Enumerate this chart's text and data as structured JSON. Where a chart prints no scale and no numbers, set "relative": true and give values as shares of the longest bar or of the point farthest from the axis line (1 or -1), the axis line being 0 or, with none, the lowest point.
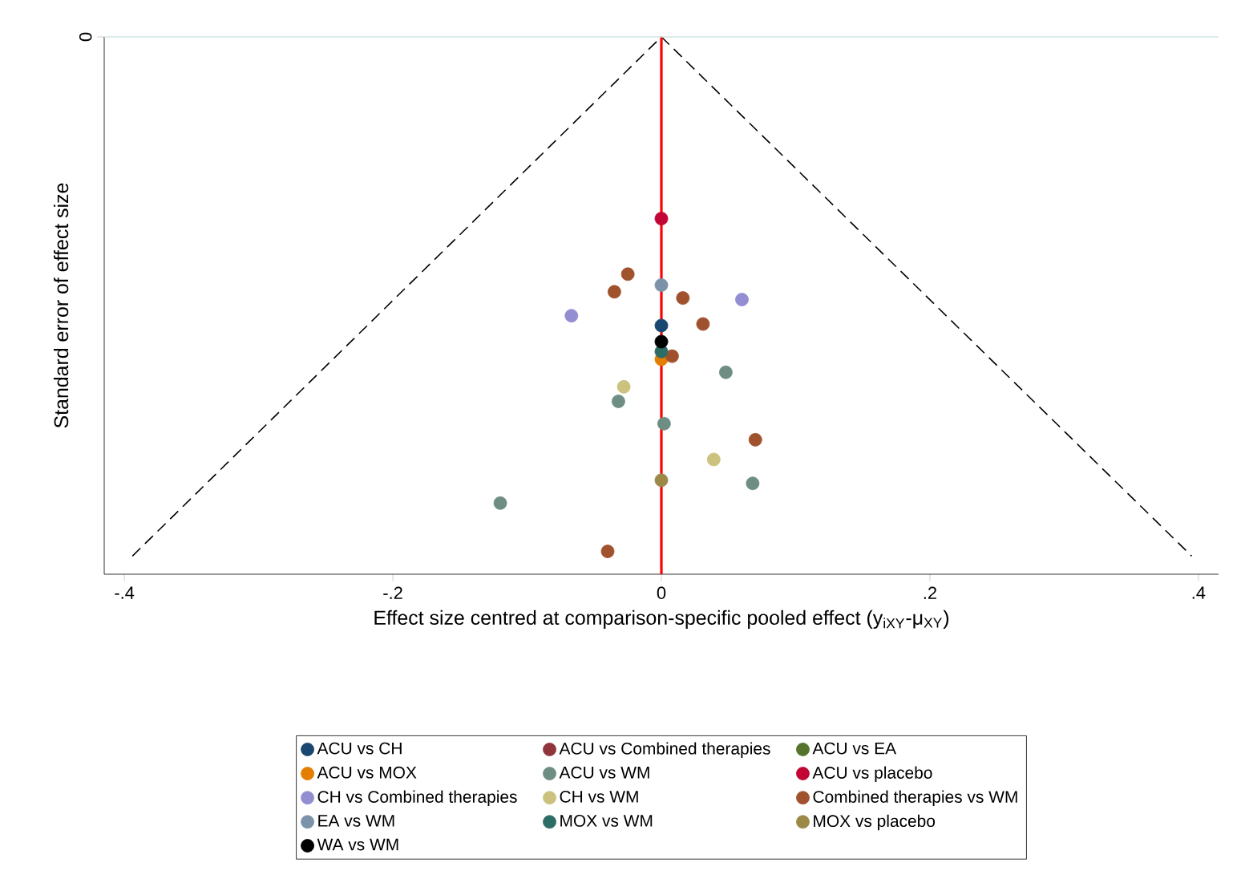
{
  "chart_data": {
    "type": "scatter",
    "xlabel": "Effect size centred at comparison-specific pooled effect (y$_{iXY}$-μ$_{XY}$)",
    "ylabel": "Standard error of effect size",
    "relative": true,
    "annotations": [
      "0"
    ],
    "xlim": [
      -0.415,
      0.415
    ],
    "xticks": [
      {
        "value": -0.4,
        "label": "-.4"
      },
      {
        "value": -0.2,
        "label": "-.2"
      },
      {
        "value": 0,
        "label": "0"
      },
      {
        "value": 0.2,
        "label": ".2"
      },
      {
        "value": 0.4,
        "label": ".4"
      }
    ],
    "legend": "bottom",
    "marker": "circle",
    "series": [
      {
        "name": "ACU vs CH",
        "color": "#1a476f",
        "x": [
          0
        ],
        "values": [
          -0.556
        ]
      },
      {
        "name": "ACU vs Combined therapies",
        "color": "#90353b"
      },
      {
        "name": "ACU vs EA",
        "color": "#55752f"
      },
      {
        "name": "ACU vs MOX",
        "color": "#e37e00",
        "x": [
          0
        ],
        "values": [
          -0.621
        ]
      },
      {
        "name": "ACU vs WM",
        "color": "#6e8e84",
        "x": [
          0.048,
          -0.032,
          0.002,
          0.068,
          -0.12
        ],
        "values": [
          -0.646,
          -0.702,
          -0.745,
          -0.86,
          -0.898
        ]
      },
      {
        "name": "ACU vs placebo",
        "color": "#c10534",
        "x": [
          0
        ],
        "values": [
          -0.35
        ]
      },
      {
        "name": "CH vs Combined therapies",
        "color": "#938dd2",
        "x": [
          -0.067,
          0.06
        ],
        "values": [
          -0.537,
          -0.506
        ]
      },
      {
        "name": "CH vs WM",
        "color": "#cac27e",
        "x": [
          -0.028,
          0.039
        ],
        "values": [
          -0.674,
          -0.814
        ]
      },
      {
        "name": "Combined therapies vs WM",
        "color": "#a0522d",
        "x": [
          -0.025,
          -0.035,
          0.016,
          0.031,
          0.008,
          0.07,
          -0.04
        ],
        "values": [
          -0.457,
          -0.491,
          -0.503,
          -0.553,
          -0.615,
          -0.776,
          -0.991
        ]
      },
      {
        "name": "EA vs WM",
        "color": "#7b92a8",
        "x": [
          0
        ],
        "values": [
          -0.478
        ]
      },
      {
        "name": "MOX vs WM",
        "color": "#2d6d66",
        "x": [
          0
        ],
        "values": [
          -0.606
        ]
      },
      {
        "name": "MOX vs placebo",
        "color": "#9c8847",
        "x": [
          0
        ],
        "values": [
          -0.854
        ]
      },
      {
        "name": "WA vs WM",
        "color": "#000000",
        "x": [
          0
        ],
        "values": [
          -0.587
        ]
      },
      {
        "type": "line",
        "line_style": "dashed",
        "marker": "none",
        "color": "#000000",
        "x": [
          -0.394,
          0,
          0.395
        ],
        "values": [
          -1,
          0,
          -1
        ]
      }
    ],
    "ref_lines": [
      {
        "axis": "x",
        "value": 0,
        "color": "#ff0000"
      },
      {
        "axis": "y",
        "value": 0,
        "color": "#d5e6e6"
      }
    ]
  }
}
